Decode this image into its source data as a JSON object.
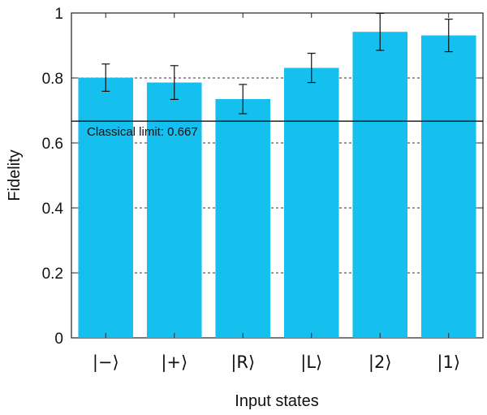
{
  "chart_data": {
    "type": "bar",
    "title": "",
    "xlabel": "Input states",
    "ylabel": "Fidelity",
    "ylim": [
      0,
      1
    ],
    "yticks": [
      0,
      0.2,
      0.4,
      0.6,
      0.8,
      1
    ],
    "ytick_labels": [
      "0",
      "0.2",
      "0.4",
      "0.6",
      "0.8",
      "1"
    ],
    "categories": [
      "|−⟩",
      "|+⟩",
      "|R⟩",
      "|L⟩",
      "|2⟩",
      "|1⟩"
    ],
    "values": [
      0.801,
      0.786,
      0.735,
      0.831,
      0.942,
      0.931
    ],
    "error": [
      0.042,
      0.052,
      0.045,
      0.045,
      0.057,
      0.05
    ],
    "bar_color": "#15bfee",
    "grid": "dashed horizontal at 0.2, 0.4, 0.6, 0.8",
    "reference_line": {
      "value": 0.667,
      "label": "Classical limit: 0.667"
    }
  }
}
